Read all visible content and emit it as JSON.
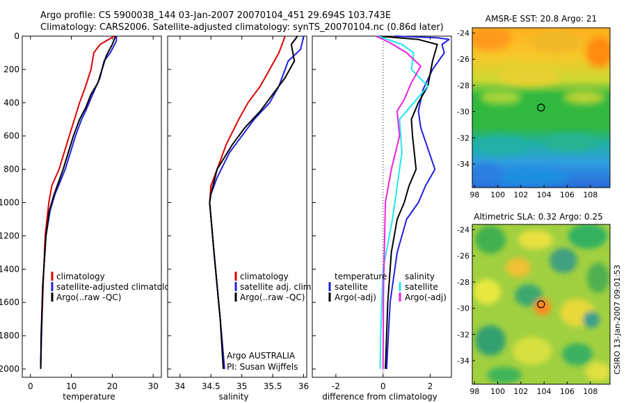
{
  "title": {
    "line1": "Argo profile: CS 5900038_144 03-Jan-2007 20070104_451 29.694S 103.743E",
    "line2": "Climatology: CARS2006. Satellite-adjusted climatology: synTS_20070104.nc (0.86d later)"
  },
  "side_note": "CSIRO 13-Jan-2007 09:01:53",
  "colors": {
    "climatology": "#dd0000",
    "satellite": "#1f1fdd",
    "argo": "#000000",
    "sat_diff_salinity": "#22e5ee",
    "argo_diff_salinity": "#ee22dd"
  },
  "chart_data": [
    {
      "type": "line",
      "panel": "temperature",
      "xlabel": "temperature",
      "ylabel": "",
      "xlim": [
        -2,
        32
      ],
      "ylim": [
        2050,
        0
      ],
      "xticks": [
        "0",
        "10",
        "20",
        "30"
      ],
      "yticks": [
        "0",
        "200",
        "400",
        "600",
        "800",
        "1000",
        "1200",
        "1400",
        "1600",
        "1800",
        "2000"
      ],
      "legend": [
        "climatology",
        "satellite-adjusted climatolog",
        "Argo(..raw -QC)"
      ],
      "series": [
        {
          "name": "climatology",
          "color": "#dd0000",
          "x": [
            20.5,
            17.0,
            15.5,
            14.8,
            13.5,
            12.0,
            9.5,
            7.0,
            5.2,
            4.5,
            3.6,
            3.1,
            2.7,
            2.5
          ],
          "y": [
            0,
            50,
            100,
            200,
            300,
            400,
            600,
            800,
            900,
            1000,
            1200,
            1500,
            1800,
            2000
          ]
        },
        {
          "name": "satellite-adjusted climatolog",
          "color": "#1f1fdd",
          "x": [
            21.0,
            21.0,
            19.5,
            18.0,
            17.0,
            15.2,
            13.5,
            12.5,
            11.0,
            8.5,
            6.0,
            4.8,
            3.8,
            3.0,
            2.7,
            2.5
          ],
          "y": [
            0,
            30,
            100,
            150,
            250,
            350,
            450,
            500,
            600,
            800,
            950,
            1050,
            1200,
            1500,
            1800,
            2000
          ]
        },
        {
          "name": "Argo(..raw -QC)",
          "color": "#000000",
          "x": [
            20.8,
            20.0,
            18.5,
            17.5,
            16.5,
            14.8,
            13.5,
            12.0,
            10.5,
            8.0,
            5.8,
            4.6,
            3.8,
            3.0,
            2.6,
            2.5
          ],
          "y": [
            0,
            50,
            120,
            200,
            280,
            350,
            430,
            500,
            600,
            800,
            950,
            1050,
            1200,
            1500,
            1800,
            2000
          ]
        }
      ]
    },
    {
      "type": "line",
      "panel": "salinity",
      "xlabel": "salinity",
      "ylabel": "",
      "xlim": [
        33.8,
        36.05
      ],
      "ylim": [
        2050,
        0
      ],
      "xticks": [
        "34",
        "34.5",
        "35",
        "35.5",
        "36"
      ],
      "yticks": [],
      "legend": [
        "climatology",
        "satellite adj. clim.",
        "Argo(..raw -QC)"
      ],
      "annotations": [
        "Argo AUSTRALIA",
        "PI: Susan Wijffels"
      ],
      "series": [
        {
          "name": "climatology",
          "color": "#dd0000",
          "x": [
            35.7,
            35.6,
            35.45,
            35.3,
            35.1,
            34.95,
            34.75,
            34.6,
            34.5,
            34.48,
            34.55,
            34.65,
            34.72
          ],
          "y": [
            0,
            100,
            200,
            300,
            400,
            500,
            650,
            800,
            900,
            1000,
            1300,
            1700,
            2000
          ]
        },
        {
          "name": "satellite adj. clim.",
          "color": "#1f1fdd",
          "x": [
            36.0,
            35.95,
            35.75,
            35.6,
            35.45,
            35.2,
            35.0,
            34.8,
            34.6,
            34.5,
            34.48,
            34.55,
            34.65,
            34.72
          ],
          "y": [
            0,
            80,
            150,
            300,
            400,
            500,
            600,
            700,
            850,
            950,
            1000,
            1300,
            1700,
            2000
          ]
        },
        {
          "name": "Argo(..raw -QC)",
          "color": "#000000",
          "x": [
            35.9,
            35.8,
            35.85,
            35.7,
            35.5,
            35.3,
            35.05,
            34.85,
            34.6,
            34.5,
            34.48,
            34.55,
            34.65,
            34.7
          ],
          "y": [
            0,
            50,
            150,
            250,
            350,
            450,
            550,
            650,
            800,
            950,
            1000,
            1300,
            1700,
            2000
          ]
        }
      ]
    },
    {
      "type": "line",
      "panel": "difference",
      "xlabel": "difference from climatology",
      "ylabel": "",
      "xlim": [
        -3.0,
        2.9
      ],
      "ylim": [
        2050,
        0
      ],
      "xticks": [
        "-2",
        "0",
        "2"
      ],
      "yticks": [],
      "legend_temperature": {
        "title": "temperature",
        "items": [
          "satellite",
          "Argo(-adj)"
        ]
      },
      "legend_salinity": {
        "title": "salinity",
        "items": [
          "satellite",
          "Argo(-adj)"
        ]
      },
      "series": [
        {
          "name": "temperature satellite",
          "color": "#1f1fdd",
          "x": [
            0.5,
            2.3,
            2.8,
            2.5,
            2.6,
            2.1,
            1.7,
            1.5,
            1.6,
            2.2,
            1.8,
            1.5,
            1.0,
            0.6,
            0.3,
            0.15
          ],
          "y": [
            0,
            10,
            20,
            50,
            100,
            200,
            320,
            450,
            550,
            800,
            900,
            1000,
            1100,
            1300,
            1600,
            2000
          ]
        },
        {
          "name": "temperature Argo(-adj)",
          "color": "#000000",
          "x": [
            -0.2,
            1.5,
            2.3,
            2.1,
            1.9,
            1.5,
            1.2,
            1.25,
            1.4,
            1.1,
            0.9,
            0.6,
            0.35,
            0.2,
            0.1
          ],
          "y": [
            0,
            20,
            50,
            150,
            300,
            400,
            500,
            600,
            800,
            900,
            1000,
            1100,
            1300,
            1600,
            2000
          ]
        },
        {
          "name": "salinity satellite",
          "color": "#22e5ee",
          "x": [
            -0.2,
            0.8,
            1.3,
            1.2,
            1.9,
            1.3,
            0.7,
            0.8,
            0.6,
            0.4,
            0.0,
            -0.1,
            -0.12
          ],
          "y": [
            0,
            50,
            100,
            200,
            300,
            400,
            500,
            700,
            900,
            1100,
            1400,
            1800,
            2000
          ]
        },
        {
          "name": "salinity Argo(-adj)",
          "color": "#ee22dd",
          "x": [
            -0.3,
            0.3,
            1.0,
            1.6,
            1.2,
            0.9,
            0.6,
            0.7,
            0.35,
            0.1,
            0.02,
            0.0
          ],
          "y": [
            0,
            40,
            100,
            180,
            280,
            380,
            450,
            600,
            800,
            1000,
            1500,
            2000
          ]
        }
      ]
    },
    {
      "type": "heatmap",
      "panel": "sst_map",
      "title": "AMSR-E SST: 20.8 Argo: 21",
      "xticks": [
        "98",
        "100",
        "102",
        "104",
        "106",
        "108"
      ],
      "yticks": [
        "-24",
        "-26",
        "-28",
        "-30",
        "-32",
        "-34"
      ],
      "xlim": [
        97.8,
        109.7
      ],
      "ylim": [
        -35.8,
        -23.6
      ],
      "marker": {
        "lon": 103.743,
        "lat": -29.694
      }
    },
    {
      "type": "heatmap",
      "panel": "sla_map",
      "title": "Altimetric SLA: 0.32 Argo: 0.25",
      "xticks": [
        "98",
        "100",
        "102",
        "104",
        "106",
        "108"
      ],
      "yticks": [
        "-24",
        "-26",
        "-28",
        "-30",
        "-32",
        "-34"
      ],
      "xlim": [
        97.8,
        109.7
      ],
      "ylim": [
        -35.8,
        -23.6
      ],
      "marker": {
        "lon": 103.743,
        "lat": -29.694
      }
    }
  ]
}
